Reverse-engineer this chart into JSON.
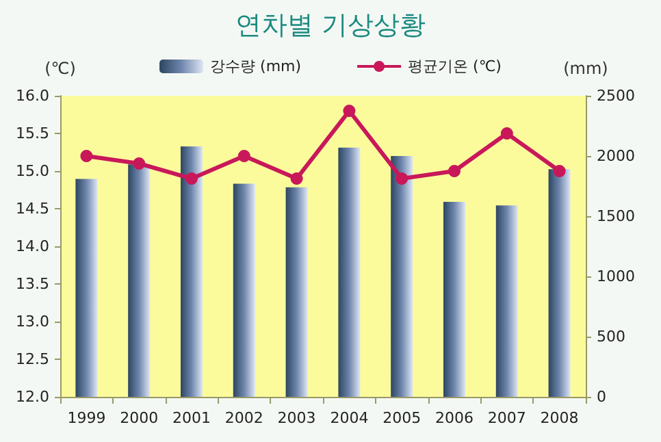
{
  "chart_data": {
    "type": "bar",
    "title": "연차별 기상상황",
    "ylabel": "(℃)",
    "y2label": "(mm)",
    "categories": [
      "1999",
      "2000",
      "2001",
      "2002",
      "2003",
      "2004",
      "2005",
      "2006",
      "2007",
      "2008"
    ],
    "series": [
      {
        "name": "강수량 (mm)",
        "axis": "y2",
        "color": "#6f86ad",
        "values": [
          1810,
          1930,
          2080,
          1770,
          1740,
          2070,
          2000,
          1620,
          1590,
          1890
        ]
      },
      {
        "name": "평균기온 (℃)",
        "type": "line",
        "color": "#c8185a",
        "values": [
          15.2,
          15.1,
          14.9,
          15.2,
          14.9,
          15.8,
          14.9,
          15.0,
          15.5,
          15.0
        ]
      }
    ],
    "ylim": [
      12,
      16
    ],
    "yticks": [
      {
        "value": 12,
        "label": "12.0"
      },
      {
        "value": 12.5,
        "label": "12.5"
      },
      {
        "value": 13,
        "label": "13.0"
      },
      {
        "value": 13.5,
        "label": "13.5"
      },
      {
        "value": 14,
        "label": "14.0"
      },
      {
        "value": 14.5,
        "label": "14.5"
      },
      {
        "value": 15,
        "label": "15.0"
      },
      {
        "value": 15.5,
        "label": "15.5"
      },
      {
        "value": 16,
        "label": "16.0"
      }
    ],
    "y2lim": [
      0,
      2500
    ],
    "y2ticks": [
      0,
      500,
      1000,
      1500,
      2000,
      2500
    ],
    "grid": false,
    "legend": "top",
    "marker": "circle",
    "line_style": "solid"
  }
}
